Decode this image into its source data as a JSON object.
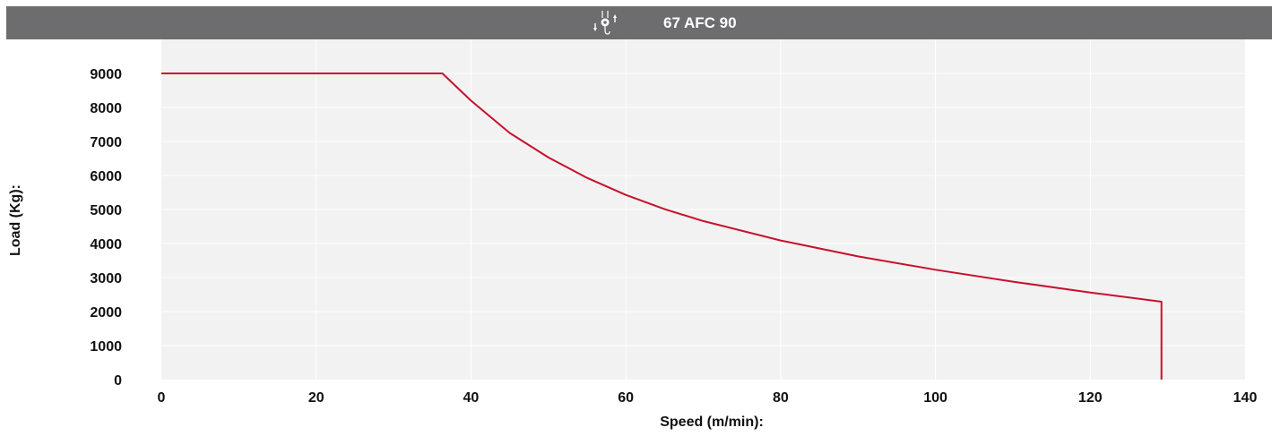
{
  "header": {
    "title": "67 AFC 90",
    "icon": "hoist-hook-icon",
    "background": "#6d6d6f",
    "text_color": "#ffffff"
  },
  "chart_data": {
    "type": "line",
    "title": "67 AFC 90",
    "xlabel": "Speed (m/min):",
    "ylabel": "Load (Kg):",
    "xlim": [
      0,
      140
    ],
    "ylim": [
      0,
      9000
    ],
    "xticks": [
      0,
      20,
      40,
      60,
      80,
      100,
      120,
      140
    ],
    "yticks": [
      0,
      1000,
      2000,
      3000,
      4000,
      5000,
      6000,
      7000,
      8000,
      9000
    ],
    "grid": true,
    "legend": "none",
    "plot_background": "#f2f2f2",
    "grid_color": "#ffffff",
    "series": [
      {
        "color": "#c8102e",
        "x": [
          0,
          36.3,
          40,
          45,
          50,
          55,
          60,
          65,
          70,
          80,
          90,
          100,
          110,
          120,
          129.2,
          129.2
        ],
        "y": [
          9000,
          9000,
          8200,
          7250,
          6530,
          5930,
          5430,
          5010,
          4660,
          4090,
          3620,
          3230,
          2880,
          2560,
          2290,
          0
        ]
      }
    ]
  }
}
